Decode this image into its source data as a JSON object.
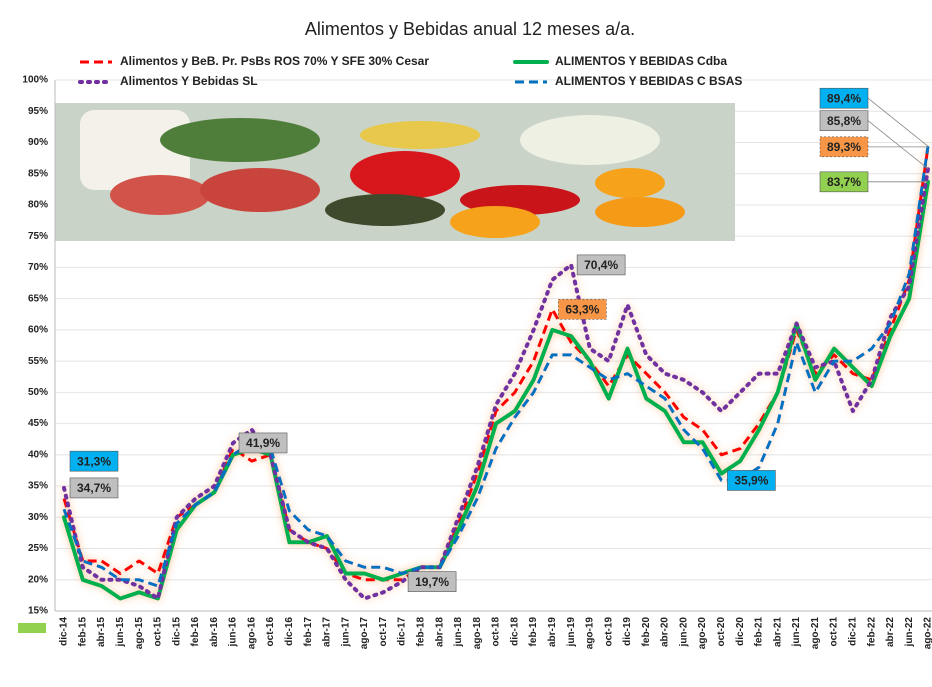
{
  "chart_data": {
    "type": "line",
    "title": "Alimentos y Bebidas anual 12 meses a/a.",
    "categories": [
      "dic-14",
      "feb-15",
      "abr-15",
      "jun-15",
      "ago-15",
      "oct-15",
      "dic-15",
      "feb-16",
      "abr-16",
      "jun-16",
      "ago-16",
      "oct-16",
      "dic-16",
      "feb-17",
      "abr-17",
      "jun-17",
      "ago-17",
      "oct-17",
      "dic-17",
      "feb-18",
      "abr-18",
      "jun-18",
      "ago-18",
      "oct-18",
      "dic-18",
      "feb-19",
      "abr-19",
      "jun-19",
      "ago-19",
      "oct-19",
      "dic-19",
      "feb-20",
      "abr-20",
      "jun-20",
      "ago-20",
      "oct-20",
      "dic-20",
      "feb-21",
      "abr-21",
      "jun-21",
      "ago-21",
      "oct-21",
      "dic-21",
      "feb-22",
      "abr-22",
      "jun-22",
      "ago-22"
    ],
    "ylim": [
      15,
      100
    ],
    "yticks": [
      {
        "value": 15,
        "label": "15%"
      },
      {
        "value": 20,
        "label": "20%"
      },
      {
        "value": 25,
        "label": "25%"
      },
      {
        "value": 30,
        "label": "30%"
      },
      {
        "value": 35,
        "label": "35%"
      },
      {
        "value": 40,
        "label": "40%"
      },
      {
        "value": 45,
        "label": "45%"
      },
      {
        "value": 50,
        "label": "50%"
      },
      {
        "value": 55,
        "label": "55%"
      },
      {
        "value": 60,
        "label": "60%"
      },
      {
        "value": 65,
        "label": "65%"
      },
      {
        "value": 70,
        "label": "70%"
      },
      {
        "value": 75,
        "label": "75%"
      },
      {
        "value": 80,
        "label": "80%"
      },
      {
        "value": 85,
        "label": "85%"
      },
      {
        "value": 90,
        "label": "90%"
      },
      {
        "value": 95,
        "label": "95%"
      },
      {
        "value": 100,
        "label": "100%"
      }
    ],
    "grid": true,
    "series": [
      {
        "name": "Alimentos y BeB. Pr. PsBs ROS 70% Y SFE 30% Cesar",
        "color": "#ff0000",
        "dash": "dashed",
        "label_color": "#f79646",
        "values": [
          33,
          23,
          23,
          21,
          23,
          21,
          30,
          32,
          34,
          41,
          39,
          40,
          28,
          26,
          25,
          21,
          20,
          20,
          20,
          22,
          22,
          29,
          37,
          47,
          50,
          55,
          63.3,
          58,
          55,
          51,
          56,
          53,
          50,
          46,
          44,
          40,
          41,
          45,
          50,
          60,
          53,
          56,
          53,
          52,
          60,
          68,
          89.3
        ],
        "value_labels": [
          null,
          null,
          null,
          null,
          null,
          null,
          null,
          null,
          null,
          null,
          null,
          null,
          null,
          null,
          null,
          null,
          null,
          null,
          null,
          null,
          null,
          null,
          null,
          null,
          null,
          null,
          "63,3%",
          null,
          null,
          null,
          null,
          null,
          null,
          null,
          null,
          null,
          null,
          null,
          null,
          null,
          null,
          null,
          null,
          null,
          null,
          null,
          "89,3%"
        ]
      },
      {
        "name": "ALIMENTOS Y BEBIDAS Cdba",
        "color": "#00b050",
        "dash": "solid",
        "label_color": "#92d050",
        "values": [
          30,
          20,
          19,
          17,
          18,
          17,
          28,
          32,
          34,
          40,
          41,
          40,
          26,
          26,
          27,
          21,
          21,
          20,
          21,
          22,
          22,
          28,
          35,
          45,
          47,
          52,
          60,
          59,
          55,
          49,
          57,
          49,
          47,
          42,
          42,
          37,
          39,
          44,
          50,
          61,
          52,
          57,
          54,
          51,
          59,
          65,
          83.7
        ],
        "value_labels": [
          null,
          null,
          null,
          null,
          null,
          null,
          null,
          null,
          null,
          null,
          null,
          null,
          null,
          null,
          null,
          null,
          null,
          null,
          null,
          null,
          null,
          null,
          null,
          null,
          null,
          null,
          null,
          null,
          null,
          null,
          null,
          null,
          null,
          null,
          null,
          null,
          null,
          null,
          null,
          null,
          null,
          null,
          null,
          null,
          null,
          null,
          "83,7%"
        ]
      },
      {
        "name": "Alimentos Y Bebidas SL",
        "color": "#7030a0",
        "dash": "dotted",
        "label_color": "#bfbfbf",
        "values": [
          34.7,
          22,
          20,
          20,
          19,
          17,
          30,
          33,
          35,
          41.9,
          44,
          40,
          28,
          26,
          25,
          20,
          17,
          18,
          19.7,
          22,
          22,
          30,
          38,
          48,
          53,
          60,
          68,
          70.4,
          57,
          55,
          64,
          56,
          53,
          52,
          50,
          47,
          50,
          53,
          53,
          61,
          54,
          55,
          47,
          52,
          62,
          67,
          85.8
        ],
        "value_labels": [
          "34,7%",
          null,
          null,
          null,
          null,
          null,
          null,
          null,
          null,
          "41,9%",
          null,
          null,
          null,
          null,
          null,
          null,
          null,
          null,
          "19,7%",
          null,
          null,
          null,
          null,
          null,
          null,
          null,
          null,
          "70,4%",
          null,
          null,
          null,
          null,
          null,
          null,
          null,
          null,
          null,
          null,
          null,
          null,
          null,
          null,
          null,
          null,
          null,
          null,
          "85,8%"
        ]
      },
      {
        "name": "ALIMENTOS Y BEBIDAS C BSAS",
        "color": "#0070c0",
        "dash": "dashed",
        "label_color": "#00b0f0",
        "values": [
          31.3,
          23,
          22,
          20,
          20,
          19,
          29,
          32,
          34,
          40,
          42,
          41,
          31,
          28,
          27,
          23,
          22,
          22,
          21,
          22,
          22,
          27,
          33,
          41,
          46,
          50,
          56,
          56,
          54,
          52,
          53,
          51,
          49,
          44,
          41,
          35.9,
          36,
          38,
          45,
          58,
          50,
          55,
          55,
          57,
          61,
          69,
          89.4
        ],
        "value_labels": [
          "31,3%",
          null,
          null,
          null,
          null,
          null,
          null,
          null,
          null,
          null,
          null,
          null,
          null,
          null,
          null,
          null,
          null,
          null,
          null,
          null,
          null,
          null,
          null,
          null,
          null,
          null,
          null,
          null,
          null,
          null,
          null,
          null,
          null,
          null,
          null,
          "35,9%",
          null,
          null,
          null,
          null,
          null,
          null,
          null,
          null,
          null,
          null,
          "89,4%"
        ]
      }
    ]
  }
}
